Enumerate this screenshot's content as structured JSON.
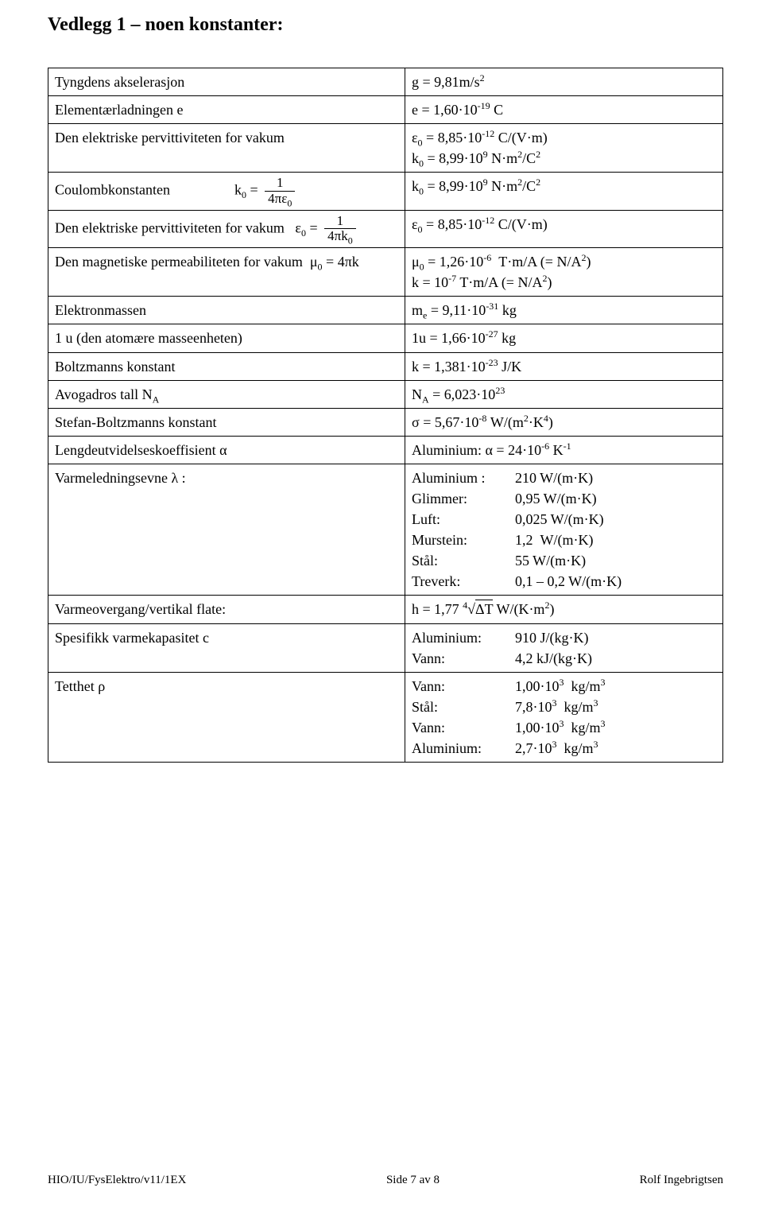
{
  "title": "Vedlegg 1 – noen konstanter:",
  "rows": {
    "r1": {
      "left": "Tyngdens akselerasjon",
      "right_html": "g = 9,81m/s<sup>2</sup>"
    },
    "r2": {
      "left": "Elementærladningen e",
      "right_html": "e = 1,60·10<sup>-19</sup> C"
    },
    "r3": {
      "left": "Den elektriske pervittiviteten for vakum",
      "right_html": "ε<sub>0</sub> = 8,85·10<sup>-12</sup> C/(V·m)<br>k<sub>0</sub> = 8,99·10<sup>9</sup> N·m<sup>2</sup>/C<sup>2</sup>"
    },
    "r4": {
      "left_html": "Coulombkonstanten &nbsp;&nbsp;&nbsp;&nbsp;&nbsp;&nbsp;&nbsp;&nbsp;&nbsp;&nbsp;&nbsp;&nbsp;&nbsp;&nbsp;&nbsp;&nbsp; k<sub>0</sub> = <span class=\"frac\"><span class=\"num\">1</span><span class=\"den\">4πε<sub>0</sub></span></span>",
      "right_html": "k<sub>0</sub> = 8,99·10<sup>9</sup> N·m<sup>2</sup>/C<sup>2</sup>"
    },
    "r5": {
      "left_html": "Den elektriske pervittiviteten for vakum &nbsp; ε<sub>0</sub> = <span class=\"frac\"><span class=\"num\">1</span><span class=\"den\">4πk<sub>0</sub></span></span>",
      "right_html": "ε<sub>0</sub> = 8,85·10<sup>-12</sup> C/(V·m)"
    },
    "r6": {
      "left_html": "Den magnetiske permeabiliteten for vakum &nbsp;μ<sub>0</sub> = 4πk",
      "right_html": "μ<sub>0</sub> = 1,26·10<sup>-6</sup> &nbsp;T·m/A (= N/A<sup>2</sup>)<br>k = 10<sup>-7</sup> T·m/A (= N/A<sup>2</sup>)"
    },
    "r7": {
      "left": "Elektronmassen",
      "right_html": "m<sub>e</sub> = 9,11·10<sup>-31</sup> kg"
    },
    "r8": {
      "left": "1 u (den atomære masseenheten)",
      "right_html": "1u = 1,66·10<sup>-27</sup> kg"
    },
    "r9": {
      "left": "Boltzmanns konstant",
      "right_html": "k = 1,381·10<sup>-23</sup> J/K"
    },
    "r10": {
      "left_html": "Avogadros tall N<sub>A</sub>",
      "right_html": "N<sub>A</sub> = 6,023·10<sup>23</sup>"
    },
    "r11": {
      "left": "Stefan-Boltzmanns konstant",
      "right_html": "σ = 5,67·10<sup>-8</sup> W/(m<sup>2</sup>·K<sup>4</sup>)"
    },
    "r12": {
      "left": "Lengdeutvidelseskoeffisient   α",
      "right_html": "Aluminium: α = 24·10<sup>-6</sup> K<sup>-1</sup>"
    },
    "r13": {
      "left": "Varmeledningsevne λ :",
      "right_html": "<div class=\"tabbed-block\"><div><span class=\"lbl\">Aluminium :</span><span>210 W/(m·K)</span></div><div><span class=\"lbl\">Glimmer:</span><span>0,95 W/(m·K)</span></div><div><span class=\"lbl\">Luft:</span><span>0,025 W/(m·K)</span></div><div><span class=\"lbl\">Murstein:</span><span>1,2 &nbsp;W/(m·K)</span></div><div><span class=\"lbl\">Stål:</span><span>55 W/(m·K)</span></div><div><span class=\"lbl\">Treverk:</span><span>0,1 – 0,2 W/(m·K)</span></div></div>"
    },
    "r14": {
      "left": "Varmeovergang/vertikal flate:",
      "right_html": "h = 1,77 <sup>4</sup>√<span style=\"border-top:1px solid #000;padding-top:1px;\">ΔT</span> W/(K·m<sup>2</sup>)"
    },
    "r15": {
      "left": "Spesifikk varmekapasitet c",
      "right_html": "<div class=\"tabbed-block\"><div><span class=\"lbl\">Aluminium:</span><span>910 J/(kg·K)</span></div><div><span class=\"lbl\">Vann:</span><span>4,2 kJ/(kg·K)</span></div></div>"
    },
    "r16": {
      "left": "Tetthet  ρ",
      "right_html": "<div class=\"tabbed-block\"><div><span class=\"lbl\">Vann:</span><span>1,00·10<sup>3</sup> &nbsp;kg/m<sup>3</sup></span></div><div><span class=\"lbl\">Stål:</span><span>7,8·10<sup>3</sup> &nbsp;kg/m<sup>3</sup></span></div><div><span class=\"lbl\">Vann:</span><span>1,00·10<sup>3</sup> &nbsp;kg/m<sup>3</sup></span></div><div><span class=\"lbl\">Aluminium:</span><span>2,7·10<sup>3</sup> &nbsp;kg/m<sup>3</sup></span></div></div>"
    }
  },
  "footer": {
    "left": "HIO/IU/FysElektro/v11/1EX",
    "center": "Side 7 av 8",
    "right": "Rolf Ingebrigtsen"
  }
}
